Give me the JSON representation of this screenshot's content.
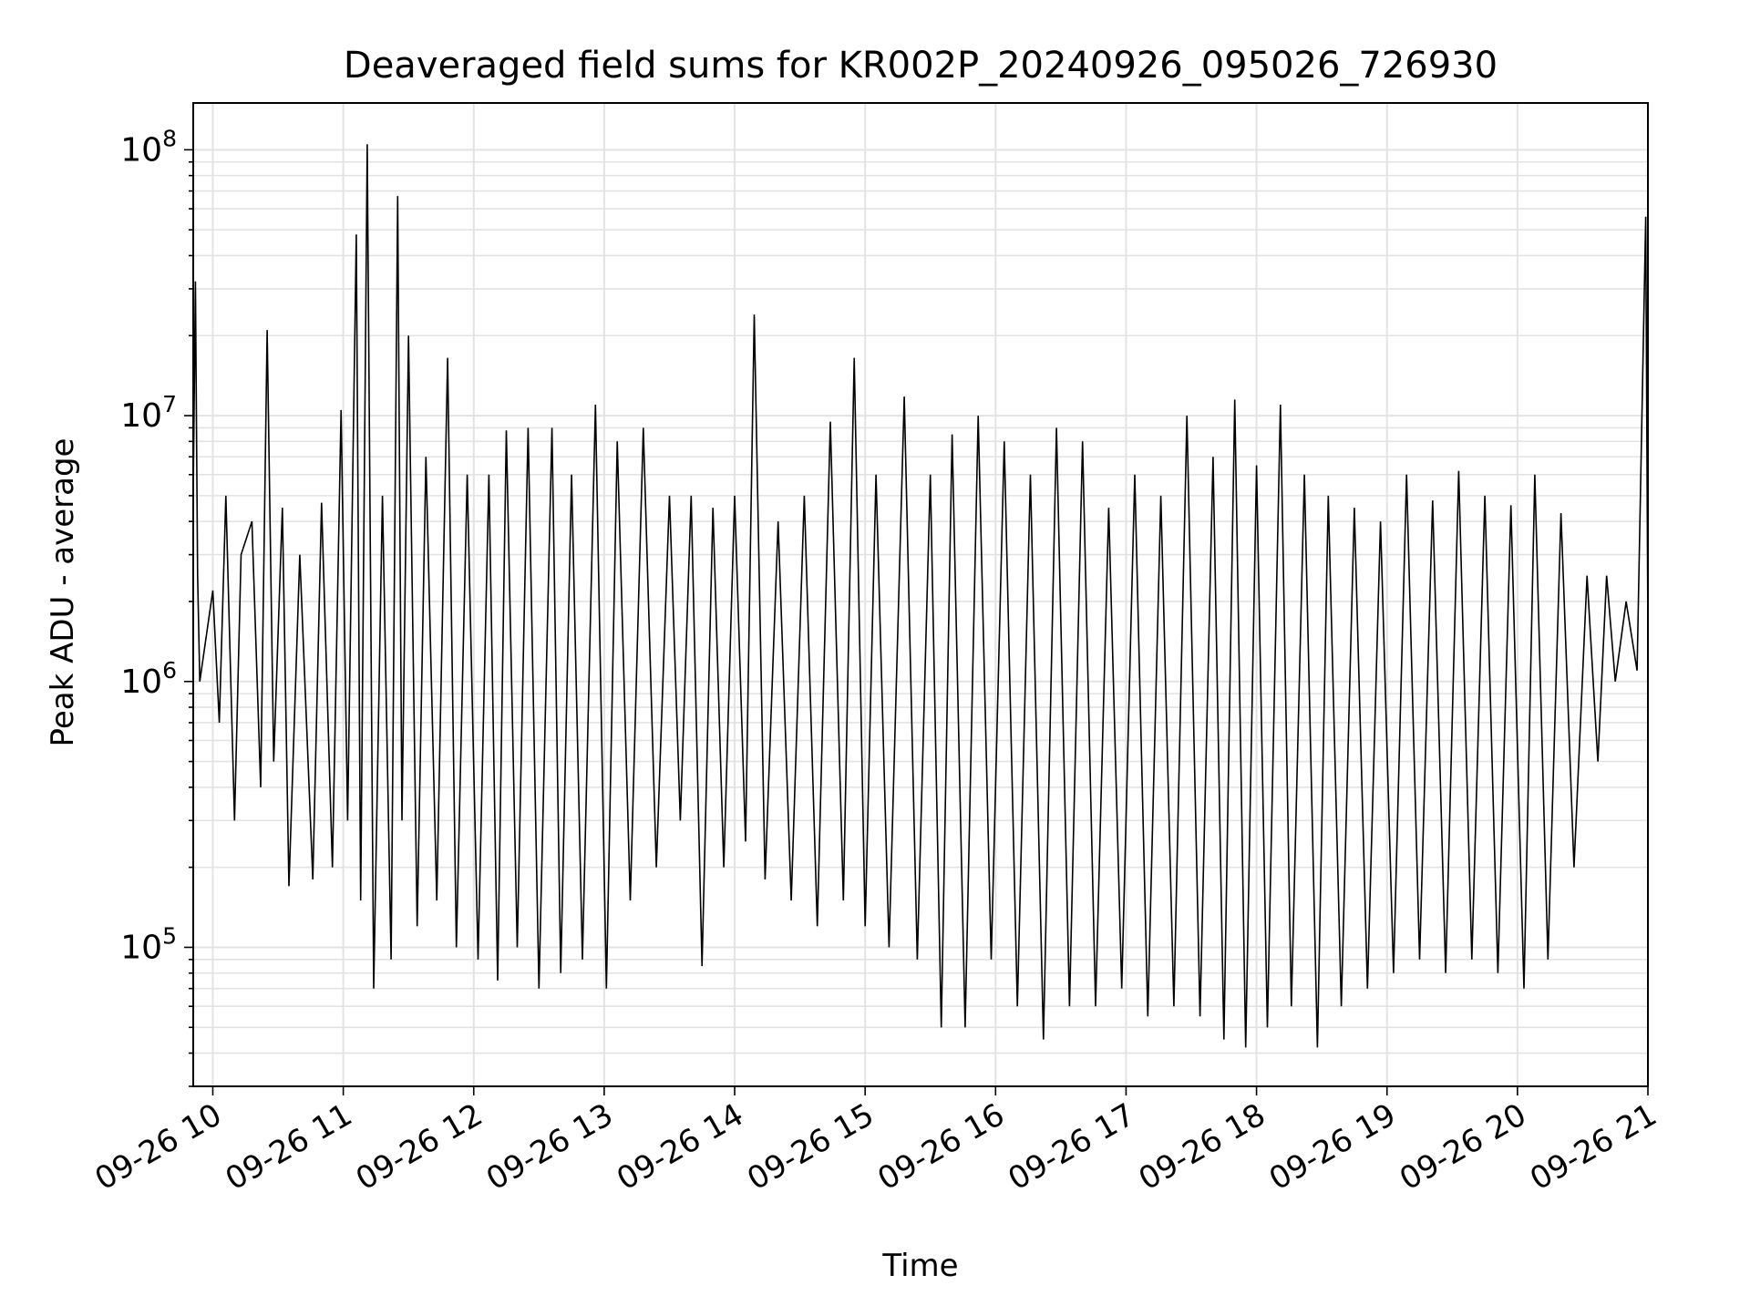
{
  "chart_data": {
    "type": "line",
    "title": "Deaveraged field sums for KR002P_20240926_095026_726930",
    "xlabel": "Time",
    "ylabel": "Peak ADU - average",
    "x_scale": "time",
    "y_scale": "log",
    "xlim": [
      "2024-09-26 09:51",
      "2024-09-26 21:00"
    ],
    "ylim": [
      30000,
      150000000
    ],
    "grid": true,
    "grid_minor": true,
    "line_color": "#000000",
    "x_ticks": [
      "09-26 10",
      "09-26 11",
      "09-26 12",
      "09-26 13",
      "09-26 14",
      "09-26 15",
      "09-26 16",
      "09-26 17",
      "09-26 18",
      "09-26 19",
      "09-26 20",
      "09-26 21"
    ],
    "y_ticks": [
      {
        "value": 100000,
        "base": "10",
        "exp": "5"
      },
      {
        "value": 1000000,
        "base": "10",
        "exp": "6"
      },
      {
        "value": 10000000,
        "base": "10",
        "exp": "7"
      },
      {
        "value": 100000000,
        "base": "10",
        "exp": "8"
      }
    ],
    "series": [
      {
        "color": "#000000",
        "points": [
          [
            "2024-09-26 09:51",
            5000000
          ],
          [
            "2024-09-26 09:52",
            32000000
          ],
          [
            "2024-09-26 09:53",
            2500000
          ],
          [
            "2024-09-26 09:54",
            1000000
          ],
          [
            "2024-09-26 10:00",
            2200000
          ],
          [
            "2024-09-26 10:03",
            700000
          ],
          [
            "2024-09-26 10:06",
            5000000
          ],
          [
            "2024-09-26 10:10",
            300000
          ],
          [
            "2024-09-26 10:13",
            3000000
          ],
          [
            "2024-09-26 10:18",
            4000000
          ],
          [
            "2024-09-26 10:22",
            400000
          ],
          [
            "2024-09-26 10:25",
            21000000
          ],
          [
            "2024-09-26 10:28",
            500000
          ],
          [
            "2024-09-26 10:32",
            4500000
          ],
          [
            "2024-09-26 10:35",
            170000
          ],
          [
            "2024-09-26 10:40",
            3000000
          ],
          [
            "2024-09-26 10:46",
            180000
          ],
          [
            "2024-09-26 10:50",
            4700000
          ],
          [
            "2024-09-26 10:55",
            200000
          ],
          [
            "2024-09-26 10:59",
            10500000
          ],
          [
            "2024-09-26 11:02",
            300000
          ],
          [
            "2024-09-26 11:06",
            48000000
          ],
          [
            "2024-09-26 11:08",
            150000
          ],
          [
            "2024-09-26 11:11",
            105000000
          ],
          [
            "2024-09-26 11:14",
            70000
          ],
          [
            "2024-09-26 11:18",
            5000000
          ],
          [
            "2024-09-26 11:22",
            90000
          ],
          [
            "2024-09-26 11:25",
            67000000
          ],
          [
            "2024-09-26 11:27",
            300000
          ],
          [
            "2024-09-26 11:30",
            20000000
          ],
          [
            "2024-09-26 11:34",
            120000
          ],
          [
            "2024-09-26 11:38",
            7000000
          ],
          [
            "2024-09-26 11:43",
            150000
          ],
          [
            "2024-09-26 11:48",
            16500000
          ],
          [
            "2024-09-26 11:52",
            100000
          ],
          [
            "2024-09-26 11:57",
            6000000
          ],
          [
            "2024-09-26 12:02",
            90000
          ],
          [
            "2024-09-26 12:07",
            6000000
          ],
          [
            "2024-09-26 12:11",
            75000
          ],
          [
            "2024-09-26 12:15",
            8800000
          ],
          [
            "2024-09-26 12:20",
            100000
          ],
          [
            "2024-09-26 12:25",
            9000000
          ],
          [
            "2024-09-26 12:30",
            70000
          ],
          [
            "2024-09-26 12:36",
            9000000
          ],
          [
            "2024-09-26 12:40",
            80000
          ],
          [
            "2024-09-26 12:45",
            6000000
          ],
          [
            "2024-09-26 12:50",
            90000
          ],
          [
            "2024-09-26 12:56",
            11000000
          ],
          [
            "2024-09-26 13:01",
            70000
          ],
          [
            "2024-09-26 13:06",
            8000000
          ],
          [
            "2024-09-26 13:12",
            150000
          ],
          [
            "2024-09-26 13:18",
            9000000
          ],
          [
            "2024-09-26 13:24",
            200000
          ],
          [
            "2024-09-26 13:30",
            5000000
          ],
          [
            "2024-09-26 13:35",
            300000
          ],
          [
            "2024-09-26 13:40",
            5000000
          ],
          [
            "2024-09-26 13:45",
            85000
          ],
          [
            "2024-09-26 13:50",
            4500000
          ],
          [
            "2024-09-26 13:55",
            200000
          ],
          [
            "2024-09-26 14:00",
            5000000
          ],
          [
            "2024-09-26 14:05",
            250000
          ],
          [
            "2024-09-26 14:09",
            24000000
          ],
          [
            "2024-09-26 14:14",
            180000
          ],
          [
            "2024-09-26 14:20",
            4000000
          ],
          [
            "2024-09-26 14:26",
            150000
          ],
          [
            "2024-09-26 14:32",
            5000000
          ],
          [
            "2024-09-26 14:38",
            120000
          ],
          [
            "2024-09-26 14:44",
            9500000
          ],
          [
            "2024-09-26 14:50",
            150000
          ],
          [
            "2024-09-26 14:55",
            16500000
          ],
          [
            "2024-09-26 15:00",
            120000
          ],
          [
            "2024-09-26 15:05",
            6000000
          ],
          [
            "2024-09-26 15:11",
            100000
          ],
          [
            "2024-09-26 15:18",
            11800000
          ],
          [
            "2024-09-26 15:24",
            90000
          ],
          [
            "2024-09-26 15:30",
            6000000
          ],
          [
            "2024-09-26 15:35",
            50000
          ],
          [
            "2024-09-26 15:40",
            8500000
          ],
          [
            "2024-09-26 15:46",
            50000
          ],
          [
            "2024-09-26 15:52",
            10000000
          ],
          [
            "2024-09-26 15:58",
            90000
          ],
          [
            "2024-09-26 16:04",
            8000000
          ],
          [
            "2024-09-26 16:10",
            60000
          ],
          [
            "2024-09-26 16:16",
            6000000
          ],
          [
            "2024-09-26 16:22",
            45000
          ],
          [
            "2024-09-26 16:28",
            9000000
          ],
          [
            "2024-09-26 16:34",
            60000
          ],
          [
            "2024-09-26 16:40",
            8000000
          ],
          [
            "2024-09-26 16:46",
            60000
          ],
          [
            "2024-09-26 16:52",
            4500000
          ],
          [
            "2024-09-26 16:58",
            70000
          ],
          [
            "2024-09-26 17:04",
            6000000
          ],
          [
            "2024-09-26 17:10",
            55000
          ],
          [
            "2024-09-26 17:16",
            5000000
          ],
          [
            "2024-09-26 17:22",
            60000
          ],
          [
            "2024-09-26 17:28",
            10000000
          ],
          [
            "2024-09-26 17:34",
            55000
          ],
          [
            "2024-09-26 17:40",
            7000000
          ],
          [
            "2024-09-26 17:45",
            45000
          ],
          [
            "2024-09-26 17:50",
            11500000
          ],
          [
            "2024-09-26 17:55",
            42000
          ],
          [
            "2024-09-26 18:00",
            6500000
          ],
          [
            "2024-09-26 18:05",
            50000
          ],
          [
            "2024-09-26 18:11",
            11000000
          ],
          [
            "2024-09-26 18:16",
            60000
          ],
          [
            "2024-09-26 18:22",
            6000000
          ],
          [
            "2024-09-26 18:28",
            42000
          ],
          [
            "2024-09-26 18:33",
            5000000
          ],
          [
            "2024-09-26 18:39",
            60000
          ],
          [
            "2024-09-26 18:45",
            4500000
          ],
          [
            "2024-09-26 18:51",
            70000
          ],
          [
            "2024-09-26 18:57",
            4000000
          ],
          [
            "2024-09-26 19:03",
            80000
          ],
          [
            "2024-09-26 19:09",
            6000000
          ],
          [
            "2024-09-26 19:15",
            90000
          ],
          [
            "2024-09-26 19:21",
            4800000
          ],
          [
            "2024-09-26 19:27",
            80000
          ],
          [
            "2024-09-26 19:33",
            6200000
          ],
          [
            "2024-09-26 19:39",
            90000
          ],
          [
            "2024-09-26 19:45",
            5000000
          ],
          [
            "2024-09-26 19:51",
            80000
          ],
          [
            "2024-09-26 19:57",
            4600000
          ],
          [
            "2024-09-26 20:03",
            70000
          ],
          [
            "2024-09-26 20:08",
            6000000
          ],
          [
            "2024-09-26 20:14",
            90000
          ],
          [
            "2024-09-26 20:20",
            4300000
          ],
          [
            "2024-09-26 20:26",
            200000
          ],
          [
            "2024-09-26 20:32",
            2500000
          ],
          [
            "2024-09-26 20:37",
            500000
          ],
          [
            "2024-09-26 20:41",
            2500000
          ],
          [
            "2024-09-26 20:45",
            1000000
          ],
          [
            "2024-09-26 20:50",
            2000000
          ],
          [
            "2024-09-26 20:55",
            1100000
          ],
          [
            "2024-09-26 20:59",
            56000000
          ],
          [
            "2024-09-26 21:00",
            1500000
          ]
        ]
      }
    ]
  }
}
